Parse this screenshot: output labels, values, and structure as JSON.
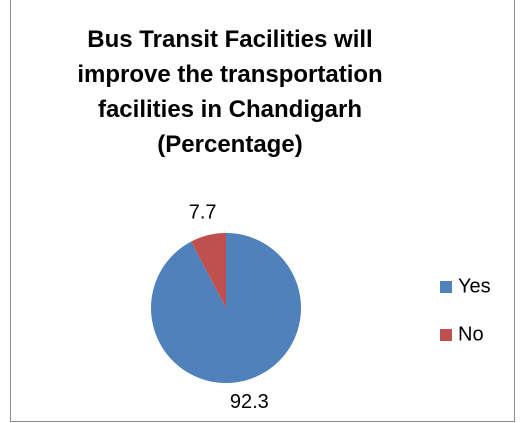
{
  "chart_data": {
    "type": "pie",
    "title": "Bus Transit Facilities will improve the transportation facilities in Chandigarh (Percentage)",
    "categories": [
      "Yes",
      "No"
    ],
    "values": [
      92.3,
      7.7
    ],
    "colors": [
      "#4f81bd",
      "#c0504d"
    ],
    "legend": "right"
  }
}
